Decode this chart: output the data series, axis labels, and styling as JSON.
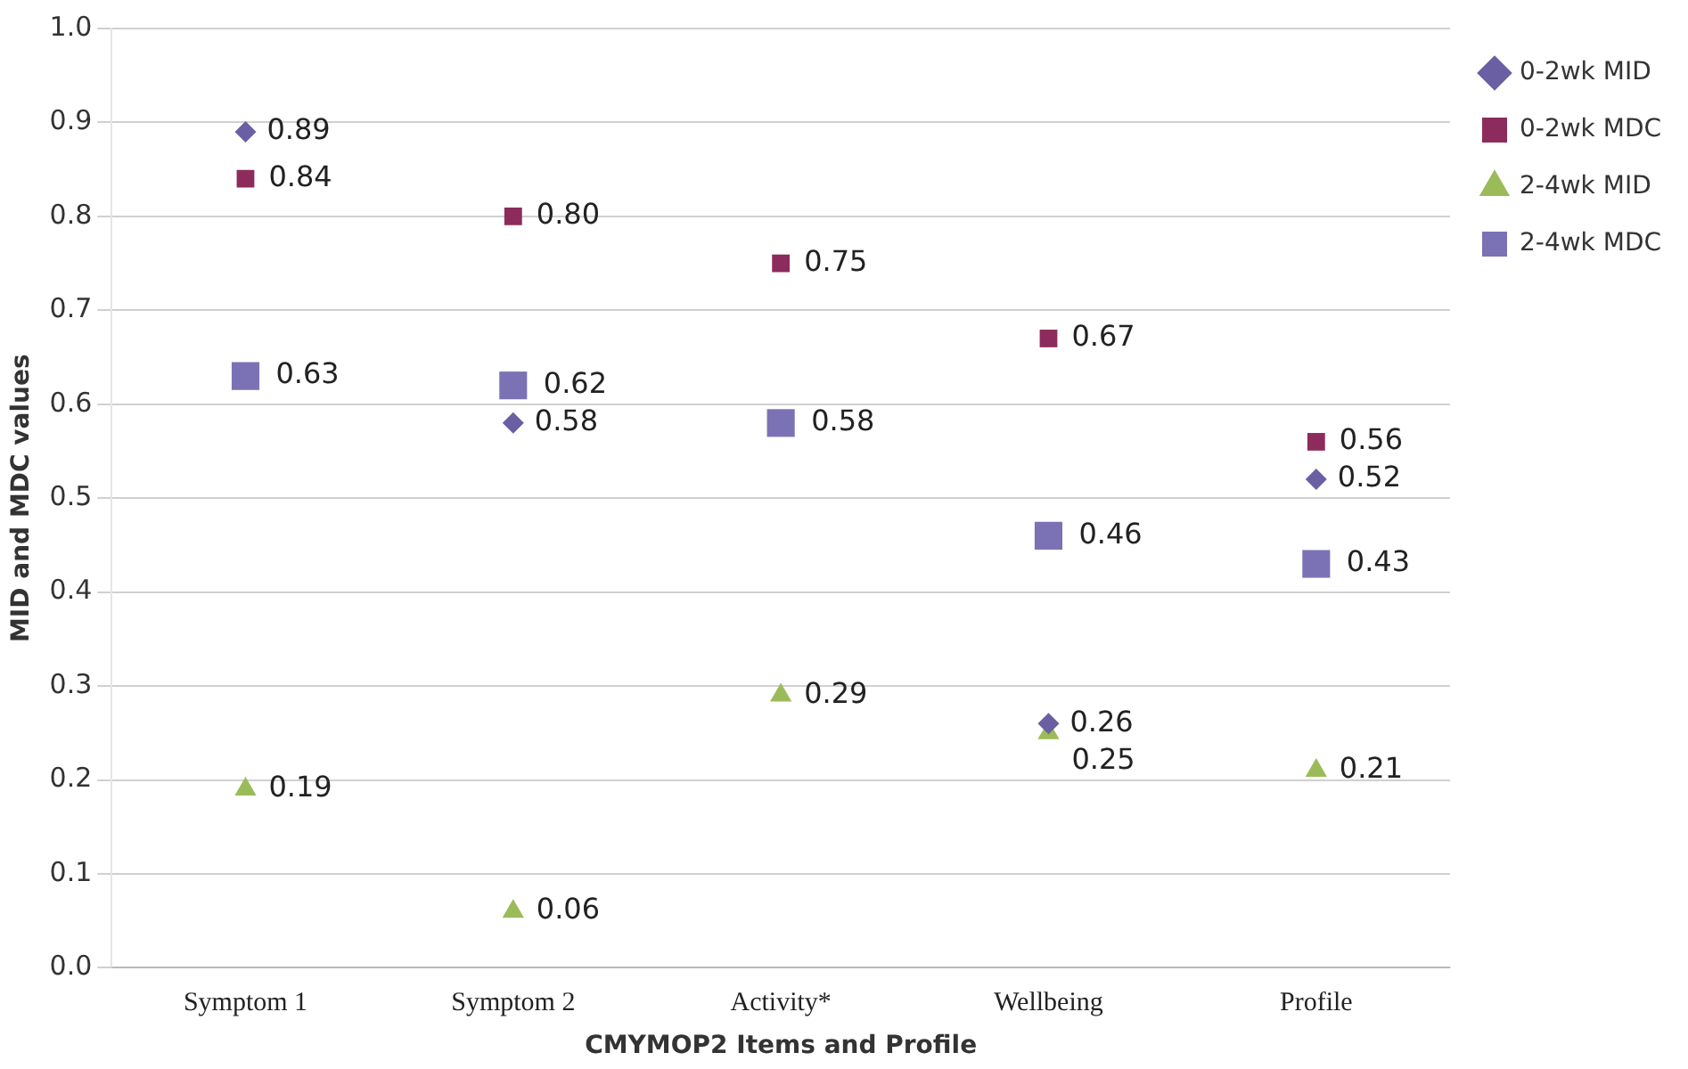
{
  "chart_data": {
    "type": "scatter",
    "xlabel": "CMYMOP2 Items and Profile",
    "ylabel": "MID and MDC values",
    "categories": [
      "Symptom 1",
      "Symptom 2",
      "Activity*",
      "Wellbeing",
      "Profile"
    ],
    "ylim": [
      0,
      1
    ],
    "yticks": [
      {
        "value": 0,
        "label": "0.0"
      },
      0.1,
      0.2,
      0.3,
      0.4,
      0.5,
      0.6,
      0.7,
      0.8,
      0.9,
      {
        "value": 1,
        "label": "1.0"
      }
    ],
    "grid": "y",
    "legend": "top right",
    "series": [
      {
        "name": "0-2wk MID",
        "color": "#6a5fa3",
        "marker": "diamond",
        "values": [
          0.89,
          0.58,
          null,
          0.26,
          0.52
        ],
        "value_labels": [
          "0.89",
          "0.58",
          null,
          "0.26",
          "0.52"
        ]
      },
      {
        "name": "0-2wk MDC",
        "color": "#8c2b5c",
        "marker": "square",
        "values": [
          0.84,
          0.8,
          0.75,
          0.67,
          0.56
        ],
        "value_labels": [
          "0.84",
          "0.80",
          "0.75",
          "0.67",
          "0.56"
        ]
      },
      {
        "name": "2-4wk MID",
        "color": "#9bbb59",
        "marker": "triangle",
        "values": [
          0.19,
          0.06,
          0.29,
          0.25,
          0.21
        ],
        "value_labels": [
          "0.19",
          "0.06",
          "0.29",
          "0.25",
          "0.21"
        ]
      },
      {
        "name": "2-4wk MDC",
        "color": "#7b72b5",
        "marker": "square",
        "values": [
          0.63,
          0.62,
          0.58,
          0.46,
          0.43
        ],
        "value_labels": [
          "0.63",
          "0.62",
          "0.58",
          "0.46",
          "0.43"
        ]
      }
    ]
  }
}
